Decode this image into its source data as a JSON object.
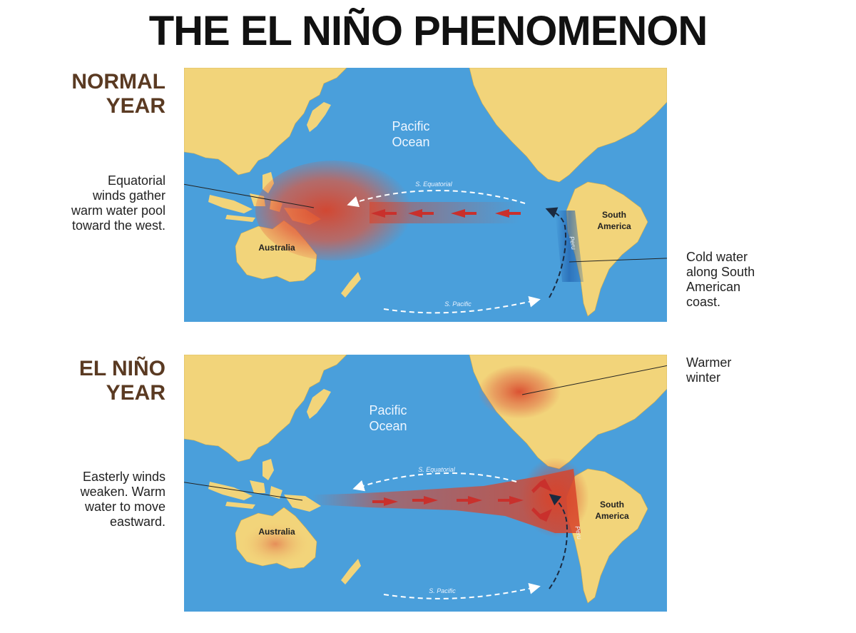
{
  "title": "THE EL NIÑO PHENOMENON",
  "colors": {
    "ocean": "#4a9fdb",
    "land": "#f2d47a",
    "warm_water": "#d8432a",
    "cold_water": "#1f5fae",
    "label_brown": "#5a3a22"
  },
  "normal_year": {
    "label_line1": "NORMAL",
    "label_line2": "YEAR",
    "ocean_label_line1": "Pacific",
    "ocean_label_line2": "Ocean",
    "current_top": "S. Equatorial",
    "current_bottom": "S. Pacific",
    "current_coastal": "Peru",
    "land_australia": "Australia",
    "land_south_america_line1": "South",
    "land_south_america_line2": "America",
    "annotation_left": [
      "Equatorial",
      "winds gather",
      "warm water pool",
      "toward the west."
    ],
    "annotation_right": [
      "Cold water",
      "along South",
      "American",
      "coast."
    ]
  },
  "elnino_year": {
    "label_line1": "EL NIÑO",
    "label_line2": "YEAR",
    "ocean_label_line1": "Pacific",
    "ocean_label_line2": "Ocean",
    "current_top": "S. Equatorial",
    "current_bottom": "S. Pacific",
    "current_coastal": "Peru",
    "land_australia": "Australia",
    "land_south_america_line1": "South",
    "land_south_america_line2": "America",
    "annotation_left": [
      "Easterly winds",
      "weaken. Warm",
      "water to move",
      "eastward."
    ],
    "annotation_right": [
      "Warmer",
      "winter"
    ]
  }
}
